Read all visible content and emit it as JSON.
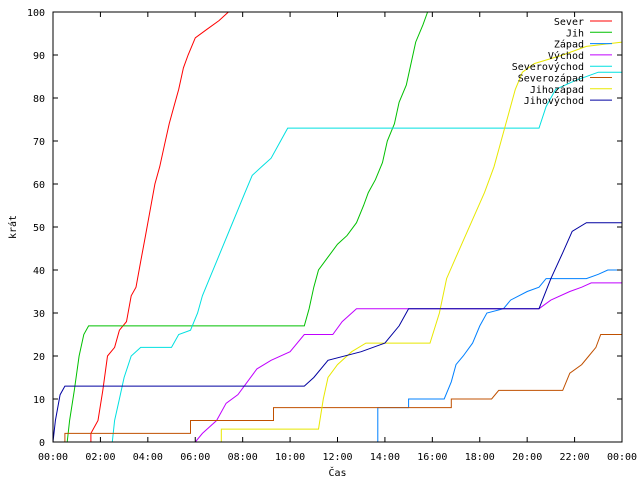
{
  "chart_data": {
    "type": "line",
    "title": "",
    "xlabel": "Čas",
    "ylabel": "krát",
    "xlim": [
      0,
      24
    ],
    "ylim": [
      0,
      100
    ],
    "x_ticks": [
      "00:00",
      "02:00",
      "04:00",
      "06:00",
      "08:00",
      "10:00",
      "12:00",
      "14:00",
      "16:00",
      "18:00",
      "20:00",
      "22:00",
      "00:00"
    ],
    "y_ticks": [
      0,
      10,
      20,
      30,
      40,
      50,
      60,
      70,
      80,
      90,
      100
    ],
    "legend_position": "top-right",
    "grid": false,
    "series": [
      {
        "name": "Sever",
        "color": "#ff0000",
        "points": [
          [
            1.6,
            0
          ],
          [
            1.6,
            2
          ],
          [
            1.9,
            5
          ],
          [
            2.1,
            12
          ],
          [
            2.3,
            20
          ],
          [
            2.6,
            22
          ],
          [
            2.8,
            26
          ],
          [
            3.1,
            28
          ],
          [
            3.3,
            34
          ],
          [
            3.5,
            36
          ],
          [
            3.7,
            42
          ],
          [
            3.9,
            48
          ],
          [
            4.1,
            54
          ],
          [
            4.3,
            60
          ],
          [
            4.5,
            64
          ],
          [
            4.7,
            69
          ],
          [
            4.9,
            74
          ],
          [
            5.1,
            78
          ],
          [
            5.3,
            82
          ],
          [
            5.5,
            87
          ],
          [
            5.7,
            90
          ],
          [
            6.0,
            94
          ],
          [
            6.5,
            96
          ],
          [
            7.0,
            98
          ],
          [
            7.4,
            100
          ]
        ]
      },
      {
        "name": "Jih",
        "color": "#00c000",
        "points": [
          [
            0.6,
            0
          ],
          [
            0.7,
            5
          ],
          [
            0.9,
            12
          ],
          [
            1.1,
            20
          ],
          [
            1.3,
            25
          ],
          [
            1.5,
            27
          ],
          [
            10.6,
            27
          ],
          [
            10.8,
            31
          ],
          [
            11.0,
            36
          ],
          [
            11.2,
            40
          ],
          [
            11.6,
            43
          ],
          [
            12.0,
            46
          ],
          [
            12.4,
            48
          ],
          [
            12.8,
            51
          ],
          [
            13.1,
            55
          ],
          [
            13.3,
            58
          ],
          [
            13.6,
            61
          ],
          [
            13.9,
            65
          ],
          [
            14.1,
            70
          ],
          [
            14.4,
            74
          ],
          [
            14.6,
            79
          ],
          [
            14.9,
            83
          ],
          [
            15.1,
            88
          ],
          [
            15.3,
            93
          ],
          [
            15.6,
            97
          ],
          [
            15.8,
            100
          ]
        ]
      },
      {
        "name": "Západ",
        "color": "#0080ff",
        "points": [
          [
            13.7,
            0
          ],
          [
            13.7,
            8
          ],
          [
            15.0,
            8
          ],
          [
            15.0,
            10
          ],
          [
            16.5,
            10
          ],
          [
            16.8,
            14
          ],
          [
            17.0,
            18
          ],
          [
            17.3,
            20
          ],
          [
            17.7,
            23
          ],
          [
            18.0,
            27
          ],
          [
            18.3,
            30
          ],
          [
            19.0,
            31
          ],
          [
            19.3,
            33
          ],
          [
            20.0,
            35
          ],
          [
            20.5,
            36
          ],
          [
            20.8,
            38
          ],
          [
            22.5,
            38
          ],
          [
            23.0,
            39
          ],
          [
            23.4,
            40
          ],
          [
            24,
            40
          ]
        ]
      },
      {
        "name": "Východ",
        "color": "#c000ff",
        "points": [
          [
            6.0,
            0
          ],
          [
            6.3,
            2
          ],
          [
            6.9,
            5
          ],
          [
            7.3,
            9
          ],
          [
            7.8,
            11
          ],
          [
            8.2,
            14
          ],
          [
            8.6,
            17
          ],
          [
            9.2,
            19
          ],
          [
            10.0,
            21
          ],
          [
            10.6,
            25
          ],
          [
            11.8,
            25
          ],
          [
            12.2,
            28
          ],
          [
            12.8,
            31
          ],
          [
            20.5,
            31
          ],
          [
            21.0,
            33
          ],
          [
            21.8,
            35
          ],
          [
            22.3,
            36
          ],
          [
            22.7,
            37
          ],
          [
            24,
            37
          ]
        ]
      },
      {
        "name": "Severovýchod",
        "color": "#00e0e0",
        "points": [
          [
            2.5,
            0
          ],
          [
            2.6,
            5
          ],
          [
            2.8,
            10
          ],
          [
            3.0,
            15
          ],
          [
            3.3,
            20
          ],
          [
            3.7,
            22
          ],
          [
            5.0,
            22
          ],
          [
            5.3,
            25
          ],
          [
            5.8,
            26
          ],
          [
            6.1,
            30
          ],
          [
            6.3,
            34
          ],
          [
            6.6,
            38
          ],
          [
            6.9,
            42
          ],
          [
            7.2,
            46
          ],
          [
            7.5,
            50
          ],
          [
            7.8,
            54
          ],
          [
            8.1,
            58
          ],
          [
            8.4,
            62
          ],
          [
            8.8,
            64
          ],
          [
            9.2,
            66
          ],
          [
            9.6,
            70
          ],
          [
            9.9,
            73
          ],
          [
            20.5,
            73
          ],
          [
            20.8,
            78
          ],
          [
            21.2,
            82
          ],
          [
            22.0,
            84
          ],
          [
            23.0,
            86
          ],
          [
            24,
            86
          ]
        ]
      },
      {
        "name": "Severozápad",
        "color": "#c05000",
        "points": [
          [
            0.5,
            0
          ],
          [
            0.5,
            2
          ],
          [
            5.8,
            2
          ],
          [
            5.8,
            5
          ],
          [
            9.3,
            5
          ],
          [
            9.3,
            8
          ],
          [
            16.8,
            8
          ],
          [
            16.8,
            10
          ],
          [
            18.5,
            10
          ],
          [
            18.8,
            12
          ],
          [
            21.5,
            12
          ],
          [
            21.8,
            16
          ],
          [
            22.3,
            18
          ],
          [
            22.6,
            20
          ],
          [
            22.9,
            22
          ],
          [
            23.1,
            25
          ],
          [
            24,
            25
          ]
        ]
      },
      {
        "name": "Jihozápad",
        "color": "#e8e800",
        "points": [
          [
            7.1,
            0
          ],
          [
            7.1,
            3
          ],
          [
            11.2,
            3
          ],
          [
            11.4,
            10
          ],
          [
            11.6,
            15
          ],
          [
            12.0,
            18
          ],
          [
            12.6,
            21
          ],
          [
            13.2,
            23
          ],
          [
            15.9,
            23
          ],
          [
            16.3,
            30
          ],
          [
            16.6,
            38
          ],
          [
            17.0,
            43
          ],
          [
            17.4,
            48
          ],
          [
            17.8,
            53
          ],
          [
            18.2,
            58
          ],
          [
            18.6,
            64
          ],
          [
            18.9,
            70
          ],
          [
            19.2,
            76
          ],
          [
            19.5,
            82
          ],
          [
            19.8,
            86
          ],
          [
            20.3,
            88
          ],
          [
            21.5,
            90
          ],
          [
            22.5,
            92
          ],
          [
            24,
            93
          ]
        ]
      },
      {
        "name": "Jihovýchod",
        "color": "#0000a0",
        "points": [
          [
            0,
            0
          ],
          [
            0.1,
            5
          ],
          [
            0.3,
            11
          ],
          [
            0.5,
            13
          ],
          [
            10.6,
            13
          ],
          [
            11.0,
            15
          ],
          [
            11.6,
            19
          ],
          [
            13.0,
            21
          ],
          [
            14.0,
            23
          ],
          [
            14.6,
            27
          ],
          [
            15.0,
            31
          ],
          [
            20.5,
            31
          ],
          [
            21.0,
            38
          ],
          [
            21.5,
            44
          ],
          [
            21.9,
            49
          ],
          [
            22.5,
            51
          ],
          [
            24,
            51
          ]
        ]
      }
    ]
  }
}
